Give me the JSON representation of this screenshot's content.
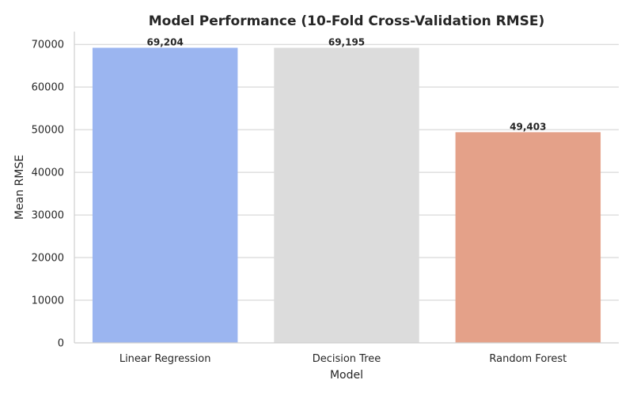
{
  "chart_data": {
    "type": "bar",
    "title": "Model Performance (10-Fold Cross-Validation RMSE)",
    "xlabel": "Model",
    "ylabel": "Mean RMSE",
    "categories": [
      "Linear Regression",
      "Decision Tree",
      "Random Forest"
    ],
    "values": [
      69204,
      69195,
      49403
    ],
    "data_labels": [
      "69,204",
      "69,195",
      "49,403"
    ],
    "colors": [
      "#9bb5f0",
      "#dcdcdc",
      "#e4a189"
    ],
    "ylim": [
      0,
      73000
    ],
    "yticks": [
      0,
      10000,
      20000,
      30000,
      40000,
      50000,
      60000,
      70000
    ],
    "ytick_labels": [
      "0",
      "10000",
      "20000",
      "30000",
      "40000",
      "50000",
      "60000",
      "70000"
    ],
    "grid": true,
    "legend": "none"
  }
}
